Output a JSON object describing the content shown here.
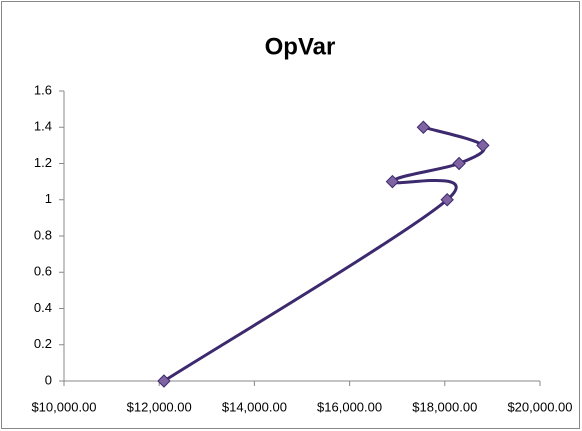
{
  "chart_data": {
    "type": "scatter",
    "title": "OpVar",
    "x": [
      12100,
      18050,
      16900,
      18300,
      18800,
      17550
    ],
    "values": [
      0,
      1.0,
      1.1,
      1.2,
      1.3,
      1.4
    ],
    "color": "#3d2a6e",
    "marker_color": "#8064a2",
    "smooth": true,
    "xlim": [
      10000,
      20000
    ],
    "xticks": [
      {
        "value": 10000,
        "label": "$10,000.00"
      },
      {
        "value": 12000,
        "label": "$12,000.00"
      },
      {
        "value": 14000,
        "label": "$14,000.00"
      },
      {
        "value": 16000,
        "label": "$16,000.00"
      },
      {
        "value": 18000,
        "label": "$18,000.00"
      },
      {
        "value": 20000,
        "label": "$20,000.00"
      }
    ],
    "ylim": [
      0,
      1.6
    ],
    "yticks": [
      0,
      0.2,
      0.4,
      0.6,
      0.8,
      1,
      1.2,
      1.4,
      1.6
    ],
    "grid": false
  }
}
